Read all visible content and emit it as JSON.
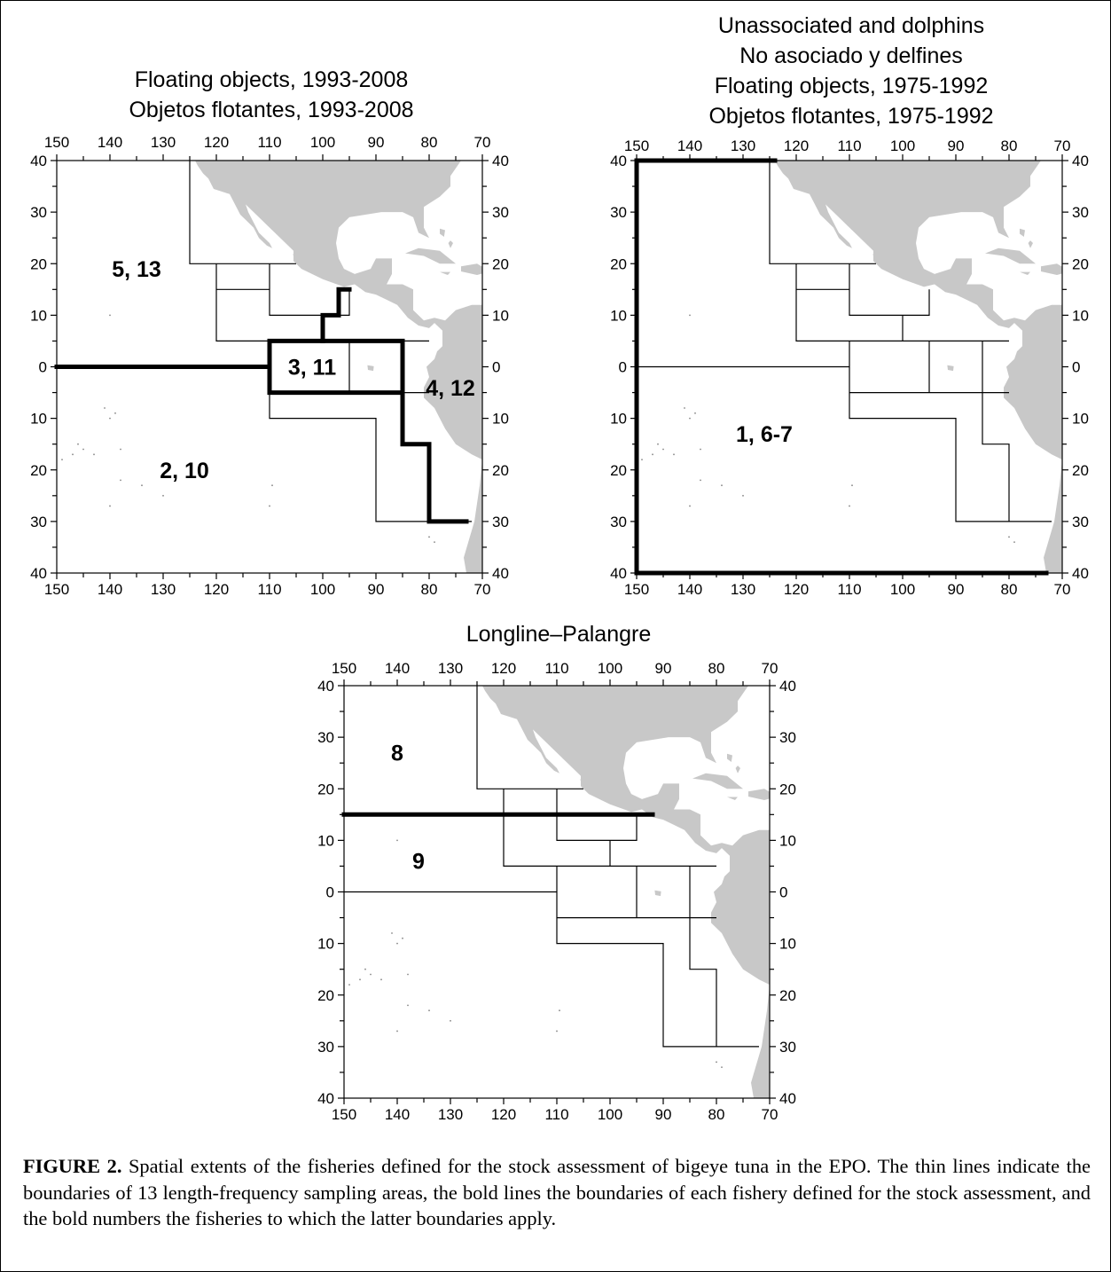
{
  "colors": {
    "land": "#c8c8c8",
    "thin_line": "#000000",
    "bold_line": "#000000",
    "text": "#000000"
  },
  "shared_axes": {
    "longitude_ticks": [
      "150",
      "140",
      "130",
      "120",
      "110",
      "100",
      "90",
      "80",
      "70"
    ],
    "latitude_ticks": [
      "40",
      "30",
      "20",
      "10",
      "0",
      "10",
      "20",
      "30",
      "40"
    ]
  },
  "maps": [
    {
      "id": "floating-objects-1993-2008",
      "titles": [
        "Floating objects, 1993-2008",
        "Objetos flotantes, 1993-2008"
      ],
      "fishery_labels": [
        {
          "text": "5, 13",
          "lon": -135,
          "lat": 19
        },
        {
          "text": "3, 11",
          "lon": -102,
          "lat": 0
        },
        {
          "text": "4, 12",
          "lon": -76,
          "lat": -4
        },
        {
          "text": "2, 10",
          "lon": -126,
          "lat": -20
        }
      ]
    },
    {
      "id": "unassociated-dolphins-floating-1975-1992",
      "titles": [
        "Unassociated and dolphins",
        "No asociado y delfines",
        "Floating objects, 1975-1992",
        "Objetos flotantes, 1975-1992"
      ],
      "fishery_labels": [
        {
          "text": "1, 6-7",
          "lon": -126,
          "lat": -13
        }
      ]
    },
    {
      "id": "longline",
      "titles": [
        "Longline–Palangre"
      ],
      "fishery_labels": [
        {
          "text": "8",
          "lon": -140,
          "lat": 27
        },
        {
          "text": "9",
          "lon": -136,
          "lat": 6
        }
      ]
    }
  ],
  "caption": {
    "label": "FIGURE 2.",
    "text": " Spatial extents of the fisheries defined for the stock assessment of bigeye tuna in the EPO.  The thin lines indicate the boundaries of 13 length-frequency sampling areas, the bold lines the boundaries of each fishery defined for the stock assessment, and the bold numbers the fisheries to which the latter boundaries apply."
  }
}
